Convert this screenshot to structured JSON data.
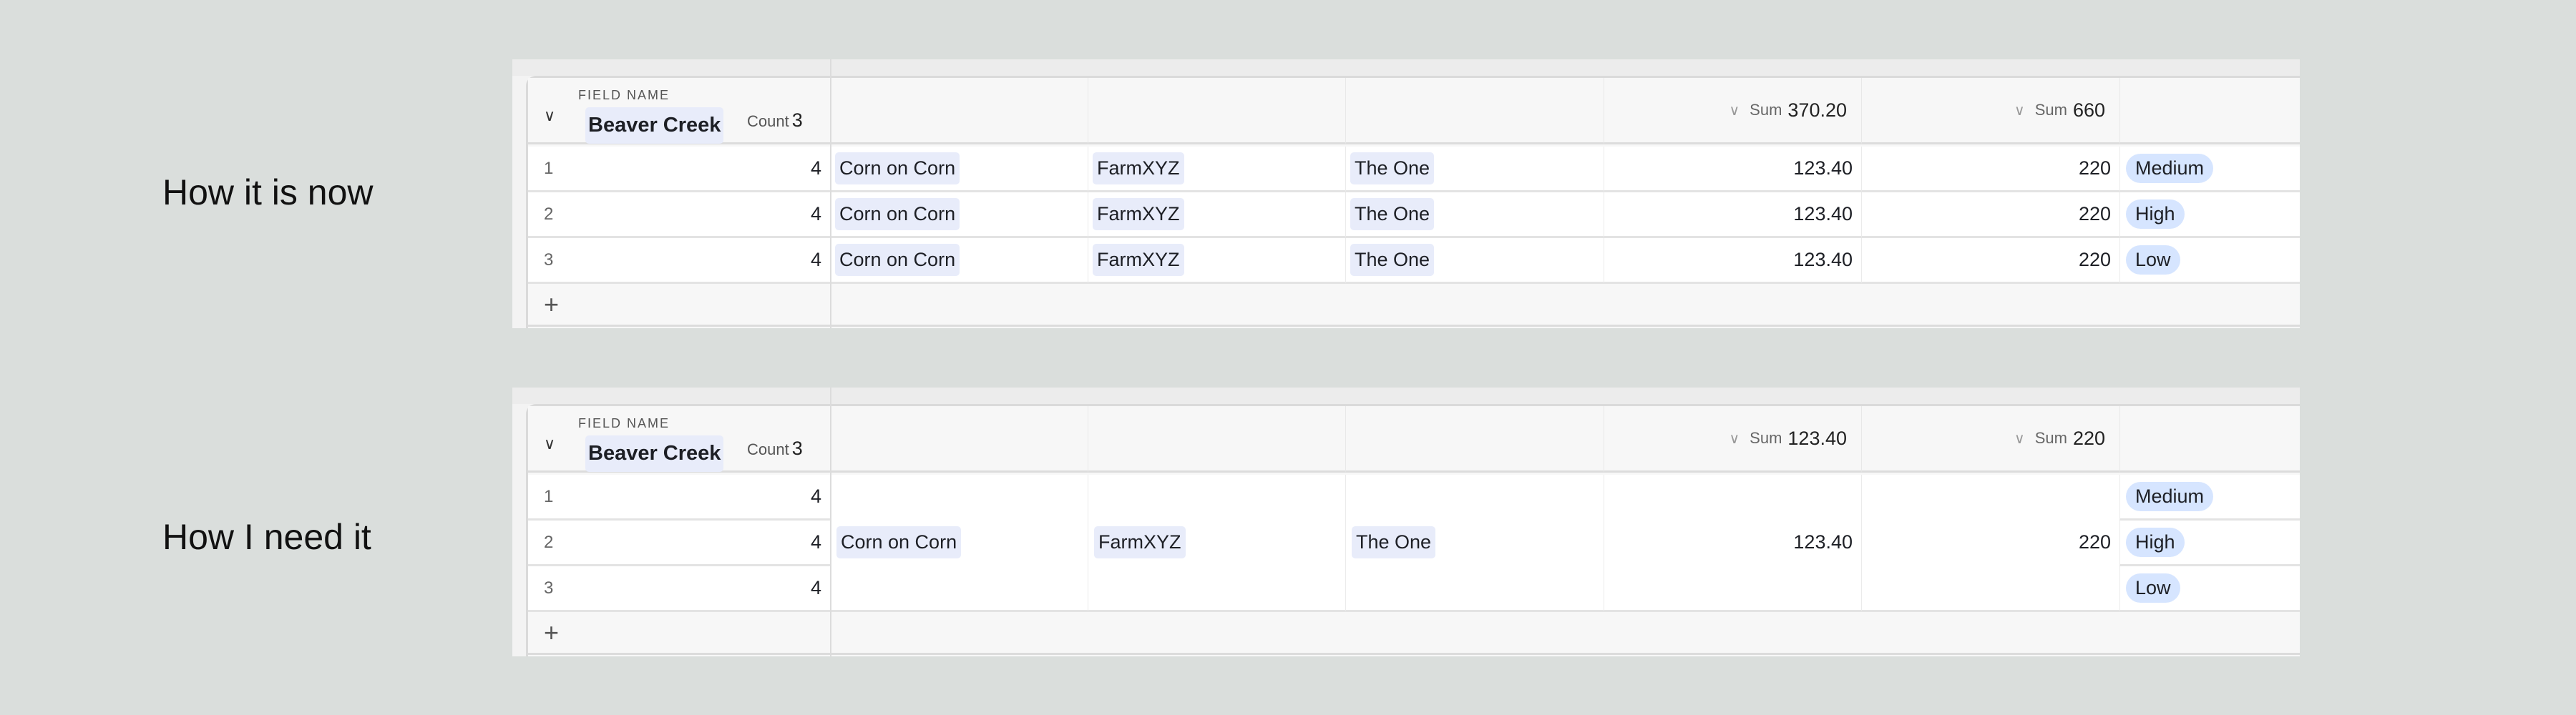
{
  "sections": [
    {
      "label": "How it is now",
      "group": {
        "field_label": "FIELD NAME",
        "name": "Beaver Creek",
        "count_label": "Count",
        "count": "3"
      },
      "sums": [
        {
          "label": "Sum",
          "value": "370.20"
        },
        {
          "label": "Sum",
          "value": "660"
        }
      ],
      "merged": false,
      "rows": [
        {
          "num": "1",
          "value": "4",
          "crop": "Corn on Corn",
          "farm": "FarmXYZ",
          "owner": "The One",
          "amount": "123.40",
          "qty": "220",
          "priority": "Medium"
        },
        {
          "num": "2",
          "value": "4",
          "crop": "Corn on Corn",
          "farm": "FarmXYZ",
          "owner": "The One",
          "amount": "123.40",
          "qty": "220",
          "priority": "High"
        },
        {
          "num": "3",
          "value": "4",
          "crop": "Corn on Corn",
          "farm": "FarmXYZ",
          "owner": "The One",
          "amount": "123.40",
          "qty": "220",
          "priority": "Low"
        }
      ]
    },
    {
      "label": "How I need it",
      "group": {
        "field_label": "FIELD NAME",
        "name": "Beaver Creek",
        "count_label": "Count",
        "count": "3"
      },
      "sums": [
        {
          "label": "Sum",
          "value": "123.40"
        },
        {
          "label": "Sum",
          "value": "220"
        }
      ],
      "merged": true,
      "merged_values": {
        "crop": "Corn on Corn",
        "farm": "FarmXYZ",
        "owner": "The One",
        "amount": "123.40",
        "qty": "220"
      },
      "rows": [
        {
          "num": "1",
          "value": "4",
          "priority": "Medium"
        },
        {
          "num": "2",
          "value": "4",
          "priority": "High"
        },
        {
          "num": "3",
          "value": "4",
          "priority": "Low"
        }
      ]
    }
  ],
  "icons": {
    "collapse": "chevron-down-icon",
    "add": "plus-icon",
    "sum_menu": "chevron-down-icon"
  },
  "colors": {
    "chip": "#e8ecfa",
    "pill": "#d6e5ff",
    "background": "#dadedc"
  }
}
